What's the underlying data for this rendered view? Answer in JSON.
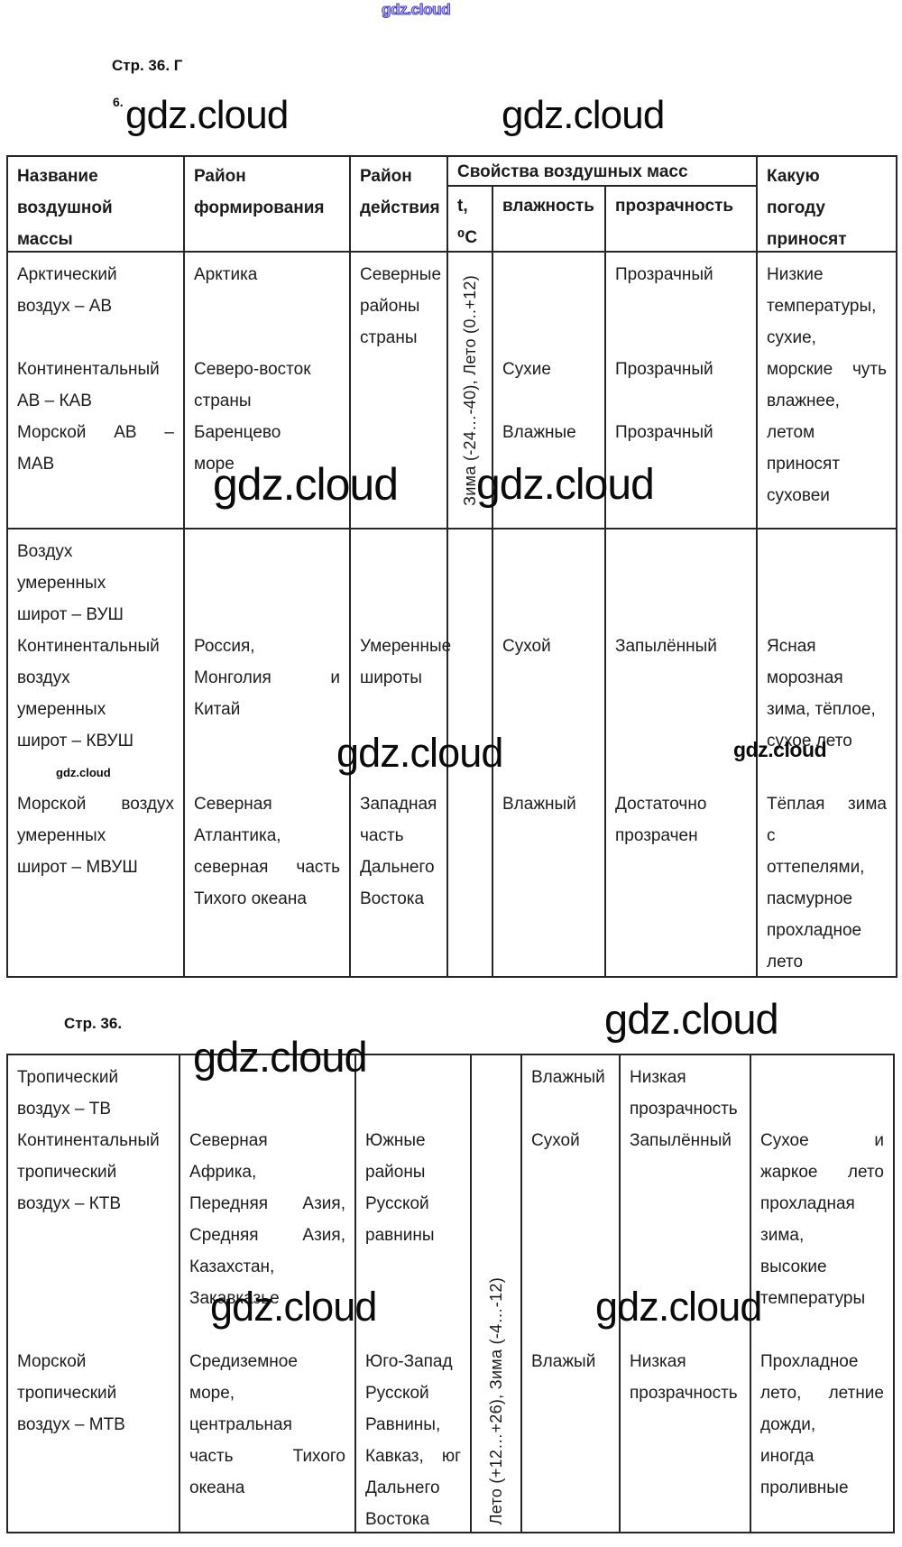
{
  "page": {
    "watermark": "gdz.cloud",
    "page_ref_top": "Стр. 36. Г",
    "exercise_number": "6.",
    "page_ref_mid": "Стр. 36."
  },
  "table1": {
    "header": {
      "name": [
        "Название",
        "воздушной",
        "массы"
      ],
      "formation": [
        "Район",
        "формирования"
      ],
      "action": [
        "Район",
        "действия"
      ],
      "properties_title": "Свойства воздушных масс",
      "temperature": [
        "t,",
        "⁰С"
      ],
      "humidity": [
        "влажность"
      ],
      "transparency": [
        "прозрачность"
      ],
      "weather": [
        "Какую",
        "погоду",
        "приносят"
      ]
    },
    "rows": [
      [
        [
          "Арктический",
          "воздух – АВ",
          "",
          {
            "t": "Континентальный"
          },
          "АВ – КАВ",
          {
            "t": "Морской АВ –",
            "j": 1
          },
          "МАВ"
        ],
        [
          "Арктика",
          "",
          "",
          "Северо-восток",
          "страны",
          "Баренцево",
          "море"
        ],
        [
          "Северные",
          "районы",
          "страны"
        ],
        {
          "rot": "Зима (-24…-40), Лето (0..+12)"
        },
        [
          "",
          "",
          "",
          "Сухие",
          "",
          "Влажные"
        ],
        [
          "Прозрачный",
          "",
          "",
          "Прозрачный",
          "",
          "Прозрачный"
        ],
        [
          "Низкие",
          "температуры,",
          "сухие,",
          {
            "t": "морские чуть",
            "j": 1
          },
          "влажнее,",
          "летом",
          "приносят",
          "суховеи"
        ]
      ],
      [
        [
          "Воздух",
          "умеренных",
          "широт – ВУШ",
          "Континентальный",
          "воздух",
          "умеренных",
          "широт – КВУШ",
          "",
          {
            "t": "Морской воздух",
            "j": 1
          },
          "умеренных",
          "широт – МВУШ"
        ],
        [
          "",
          "",
          "",
          "Россия,",
          {
            "t": "Монголия и",
            "j": 1
          },
          "Китай",
          "",
          "",
          "Северная",
          "Атлантика,",
          {
            "t": "северная часть",
            "j": 1
          },
          "Тихого океана"
        ],
        [
          "",
          "",
          "",
          "Умеренные",
          "широты",
          "",
          "",
          "",
          "Западная",
          "часть",
          "Дальнего",
          "Востока"
        ],
        [],
        [
          "",
          "",
          "",
          "Сухой",
          "",
          "",
          "",
          "",
          "Влажный"
        ],
        [
          "",
          "",
          "",
          "Запылённый",
          "",
          "",
          "",
          "",
          "Достаточно",
          "прозрачен"
        ],
        [
          "",
          "",
          "",
          "Ясная",
          "морозная",
          "зима, тёплое,",
          "сухое лето",
          "",
          {
            "t": "Тёплая зима",
            "j": 1
          },
          "с",
          "оттепелями,",
          "пасмурное",
          "прохладное",
          "лето"
        ]
      ]
    ]
  },
  "table2": {
    "rows": [
      [
        [
          "Тропический",
          "воздух – ТВ",
          "Континентальный",
          "тропический",
          "воздух – КТВ",
          "",
          "",
          "",
          "",
          "Морской",
          "тропический",
          "воздух – МТВ"
        ],
        [
          "",
          "",
          "Северная",
          "Африка,",
          {
            "t": "Передняя Азия,",
            "j": 1
          },
          {
            "t": "Средняя Азия,",
            "j": 1
          },
          "Казахстан,",
          "Закавказье",
          "",
          "Средиземное",
          "море,",
          "центральная",
          {
            "t": "часть Тихого",
            "j": 1
          },
          "океана"
        ],
        [
          "",
          "",
          "Южные",
          "районы",
          "Русской",
          "равнины",
          "",
          "",
          "",
          "Юго-Запад",
          "Русской",
          "Равнины,",
          {
            "t": "Кавказ, юг",
            "j": 1
          },
          "Дальнего",
          "Востока"
        ],
        {
          "rot": "Лето (+12…+26), Зима (-4…-12)",
          "align": "bottom"
        },
        [
          "Влажный",
          "",
          "Сухой",
          "",
          "",
          "",
          "",
          "",
          "",
          "Влажый"
        ],
        [
          "Низкая",
          "прозрачность",
          "Запылённый",
          "",
          "",
          "",
          "",
          "",
          "",
          "Низкая",
          "прозрачность"
        ],
        [
          "",
          "",
          {
            "t": "Сухое и",
            "j": 1
          },
          {
            "t": "жаркое лето",
            "j": 1
          },
          "прохладная",
          "зима,",
          "высокие",
          "температуры",
          "",
          "Прохладное",
          {
            "t": "лето, летние",
            "j": 1
          },
          "дожди,",
          "иногда",
          "проливные"
        ]
      ]
    ]
  }
}
